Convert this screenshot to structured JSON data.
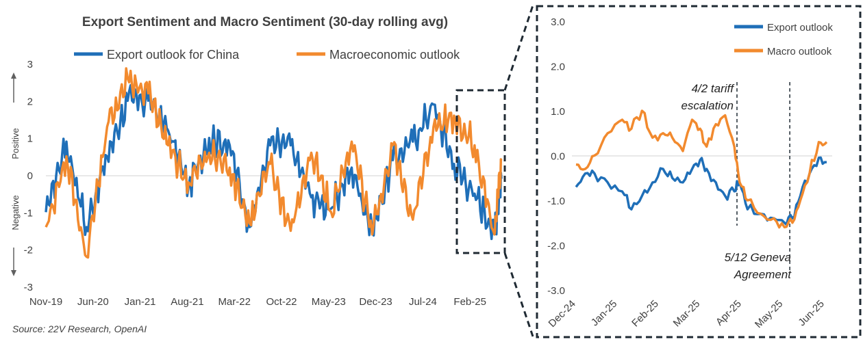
{
  "colors": {
    "export": "#1F6FB8",
    "macro": "#F28A2E",
    "text": "#404040",
    "zero_line": "#D0D0D0",
    "frame": "#1F2A33"
  },
  "source": "Source: 22V Research, OpenAI",
  "chart_data": [
    {
      "type": "line",
      "title": "Export Sentiment and Macro Sentiment (30-day rolling avg)",
      "ylabel_positive": "Positive",
      "ylabel_negative": "Negative",
      "legend_position": "top",
      "ylim": [
        -3,
        3
      ],
      "yticks": [
        "3",
        "2",
        "1",
        "0",
        "-1",
        "-2",
        "-3"
      ],
      "xticks": [
        "Nov-19",
        "Jun-20",
        "Jan-21",
        "Aug-21",
        "Mar-22",
        "Oct-22",
        "May-23",
        "Dec-23",
        "Jul-24",
        "Feb-25"
      ],
      "series": [
        {
          "name": "Export outlook for China",
          "color_key": "export",
          "x": [
            "2019-11",
            "2020-02",
            "2020-05",
            "2020-08",
            "2020-11",
            "2021-02",
            "2021-05",
            "2021-08",
            "2021-11",
            "2022-02",
            "2022-05",
            "2022-08",
            "2022-11",
            "2023-02",
            "2023-05",
            "2023-08",
            "2023-11",
            "2024-02",
            "2024-05",
            "2024-08",
            "2024-11",
            "2025-02",
            "2025-05",
            "2025-06"
          ],
          "values": [
            -1.0,
            0.9,
            -1.4,
            0.5,
            2.0,
            2.0,
            1.2,
            -0.3,
            1.0,
            0.8,
            -1.4,
            0.8,
            0.8,
            -0.6,
            -0.9,
            0.2,
            -1.5,
            0.4,
            0.9,
            1.9,
            0.3,
            -0.5,
            -1.5,
            -0.1
          ]
        },
        {
          "name": "Macroeconomic outlook",
          "color_key": "macro",
          "x": [
            "2019-11",
            "2020-02",
            "2020-05",
            "2020-08",
            "2020-11",
            "2021-02",
            "2021-05",
            "2021-08",
            "2021-11",
            "2022-02",
            "2022-05",
            "2022-08",
            "2022-11",
            "2023-02",
            "2023-05",
            "2023-08",
            "2023-11",
            "2024-02",
            "2024-05",
            "2024-08",
            "2024-11",
            "2025-02",
            "2025-05",
            "2025-06"
          ],
          "values": [
            -1.4,
            0.5,
            -2.2,
            1.3,
            2.6,
            2.2,
            0.8,
            -0.2,
            0.6,
            0.2,
            -1.3,
            0.3,
            -1.5,
            0.6,
            -1.0,
            0.9,
            -1.6,
            0.8,
            -1.2,
            1.3,
            1.6,
            0.8,
            -1.6,
            0.4
          ]
        }
      ]
    },
    {
      "type": "line",
      "title": "",
      "legend_position": "top-right",
      "ylim": [
        -3.0,
        3.0
      ],
      "yticks": [
        "3.0",
        "2.0",
        "1.0",
        "0.0",
        "-1.0",
        "-2.0",
        "-3.0"
      ],
      "xticks": [
        "Dec-24",
        "Jan-25",
        "Feb-25",
        "Mar-25",
        "Apr-25",
        "May-25",
        "Jun-25"
      ],
      "annotations": [
        {
          "date": "2025-04-02",
          "text_lines": [
            "4/2 tariff",
            "escalation"
          ]
        },
        {
          "date": "2025-05-12",
          "text_lines": [
            "5/12 Geneva",
            "Agreement"
          ]
        }
      ],
      "series": [
        {
          "name": "Export outlook",
          "color_key": "export",
          "x": [
            "2024-12-01",
            "2024-12-08",
            "2024-12-15",
            "2024-12-25",
            "2025-01-05",
            "2025-01-12",
            "2025-01-20",
            "2025-01-28",
            "2025-02-05",
            "2025-02-12",
            "2025-02-20",
            "2025-02-27",
            "2025-03-05",
            "2025-03-10",
            "2025-03-17",
            "2025-03-24",
            "2025-03-31",
            "2025-04-04",
            "2025-04-10",
            "2025-04-20",
            "2025-04-30",
            "2025-05-08",
            "2025-05-14",
            "2025-05-20",
            "2025-05-27",
            "2025-06-03",
            "2025-06-09"
          ],
          "values": [
            -0.7,
            -0.4,
            -0.4,
            -0.6,
            -0.8,
            -1.2,
            -0.9,
            -0.6,
            -0.3,
            -0.5,
            -0.6,
            -0.3,
            -0.1,
            -0.3,
            -0.6,
            -0.9,
            -0.8,
            -0.6,
            -1.2,
            -1.3,
            -1.4,
            -1.5,
            -1.4,
            -0.9,
            -0.4,
            -0.05,
            -0.15
          ]
        },
        {
          "name": "Macro outlook",
          "color_key": "macro",
          "x": [
            "2024-12-01",
            "2024-12-08",
            "2024-12-15",
            "2024-12-25",
            "2025-01-05",
            "2025-01-12",
            "2025-01-20",
            "2025-01-28",
            "2025-02-05",
            "2025-02-12",
            "2025-02-20",
            "2025-02-27",
            "2025-03-05",
            "2025-03-10",
            "2025-03-17",
            "2025-03-24",
            "2025-03-31",
            "2025-04-04",
            "2025-04-10",
            "2025-04-20",
            "2025-04-30",
            "2025-05-08",
            "2025-05-14",
            "2025-05-20",
            "2025-05-27",
            "2025-06-03",
            "2025-06-09"
          ],
          "values": [
            -0.2,
            -0.3,
            0.0,
            0.5,
            0.8,
            0.6,
            1.0,
            0.4,
            0.5,
            0.4,
            0.1,
            0.8,
            0.6,
            0.2,
            0.7,
            0.9,
            0.2,
            -0.6,
            -1.0,
            -1.3,
            -1.4,
            -1.6,
            -1.5,
            -1.0,
            -0.4,
            0.3,
            0.3
          ]
        }
      ]
    }
  ]
}
